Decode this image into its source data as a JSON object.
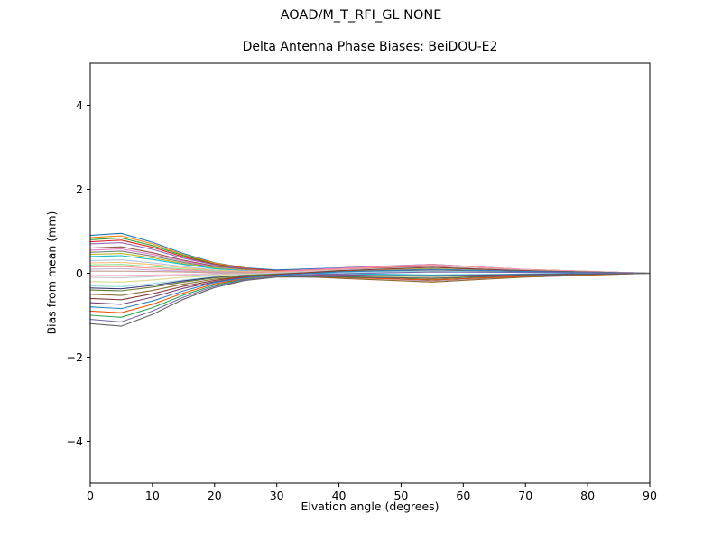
{
  "figure": {
    "background": "#ffffff",
    "spine_color": "#000000"
  },
  "chart_data": {
    "type": "line",
    "title": "AOAD/M_T_RFI_GL NONE",
    "subtitle": "Delta Antenna Phase Biases: BeiDOU-E2",
    "xlabel": "Elvation angle (degrees)",
    "ylabel": "Bias from mean (mm)",
    "xlim": [
      0,
      90
    ],
    "ylim": [
      -5,
      5
    ],
    "xticks": [
      0,
      10,
      20,
      30,
      40,
      50,
      60,
      70,
      80,
      90
    ],
    "yticks": [
      -4,
      -2,
      0,
      2,
      4
    ],
    "grid": false,
    "legend": "none",
    "x": [
      0,
      5,
      10,
      15,
      20,
      25,
      30,
      40,
      55,
      70,
      90
    ],
    "series": [
      {
        "name": "trace-01",
        "color": "#1f77b4",
        "values": [
          0.9,
          0.95,
          0.74,
          0.47,
          0.25,
          0.13,
          0.08,
          0.13,
          0.21,
          0.09,
          0
        ]
      },
      {
        "name": "trace-02",
        "color": "#ff7f0e",
        "values": [
          0.85,
          0.89,
          0.7,
          0.44,
          0.24,
          0.12,
          0.05,
          -0.05,
          -0.14,
          -0.06,
          0
        ]
      },
      {
        "name": "trace-03",
        "color": "#2ca02c",
        "values": [
          0.8,
          0.84,
          0.66,
          0.42,
          0.22,
          0.11,
          0.06,
          0.07,
          0.11,
          0.05,
          0
        ]
      },
      {
        "name": "trace-04",
        "color": "#d62728",
        "values": [
          0.75,
          0.79,
          0.62,
          0.39,
          0.21,
          0.11,
          0.06,
          0.1,
          0.16,
          0.07,
          0
        ]
      },
      {
        "name": "trace-05",
        "color": "#9467bd",
        "values": [
          0.7,
          0.73,
          0.57,
          0.36,
          0.2,
          0.1,
          0.04,
          -0.03,
          -0.09,
          -0.04,
          0
        ]
      },
      {
        "name": "trace-06",
        "color": "#8c564b",
        "values": [
          0.6,
          0.63,
          0.49,
          0.31,
          0.17,
          0.09,
          0.05,
          0.04,
          0.06,
          0.03,
          0
        ]
      },
      {
        "name": "trace-07",
        "color": "#e377c2",
        "values": [
          0.55,
          0.58,
          0.45,
          0.29,
          0.15,
          0.08,
          0.05,
          0.12,
          0.21,
          0.09,
          0
        ]
      },
      {
        "name": "trace-08",
        "color": "#7f7f7f",
        "values": [
          0.5,
          0.53,
          0.41,
          0.26,
          0.14,
          0.07,
          0.02,
          -0.09,
          -0.19,
          -0.09,
          0
        ]
      },
      {
        "name": "trace-09",
        "color": "#bcbd22",
        "values": [
          0.45,
          0.47,
          0.37,
          0.23,
          0.13,
          0.07,
          0.04,
          0.06,
          0.11,
          0.05,
          0
        ]
      },
      {
        "name": "trace-10",
        "color": "#17becf",
        "values": [
          0.4,
          0.42,
          0.33,
          0.21,
          0.11,
          0.06,
          0.02,
          -0.01,
          -0.04,
          -0.02,
          0
        ]
      },
      {
        "name": "trace-11",
        "color": "#aec7e8",
        "values": [
          0.3,
          0.32,
          0.25,
          0.16,
          0.08,
          0.05,
          0.03,
          0.08,
          0.15,
          0.07,
          0
        ]
      },
      {
        "name": "trace-12",
        "color": "#ffbb78",
        "values": [
          0.25,
          0.26,
          0.21,
          0.13,
          0.07,
          0.04,
          0.03,
          0.06,
          0.1,
          0.05,
          0
        ]
      },
      {
        "name": "trace-13",
        "color": "#98df8a",
        "values": [
          0.2,
          0.21,
          0.16,
          0.1,
          0.06,
          0.03,
          0,
          -0.07,
          -0.15,
          -0.07,
          0
        ]
      },
      {
        "name": "trace-14",
        "color": "#ff9896",
        "values": [
          0.15,
          0.16,
          0.12,
          0.08,
          0.04,
          0.03,
          0.03,
          0.1,
          0.2,
          0.09,
          0
        ]
      },
      {
        "name": "trace-15",
        "color": "#c5b0d5",
        "values": [
          0.1,
          0.11,
          0.08,
          0.05,
          0.03,
          0.01,
          0,
          -0.05,
          -0.1,
          -0.04,
          0
        ]
      },
      {
        "name": "trace-16",
        "color": "#c49c94",
        "values": [
          0.05,
          0.05,
          0.04,
          0.03,
          0.01,
          0.01,
          0.01,
          0.05,
          0.1,
          0.05,
          0
        ]
      },
      {
        "name": "trace-17",
        "color": "#f7b6d2",
        "values": [
          -0.05,
          -0.05,
          -0.04,
          -0.03,
          -0.01,
          -0.01,
          -0.02,
          -0.1,
          -0.2,
          -0.09,
          0
        ]
      },
      {
        "name": "trace-18",
        "color": "#c7c7c7",
        "values": [
          -0.1,
          -0.11,
          -0.08,
          -0.05,
          -0.03,
          -0.01,
          0.01,
          0.07,
          0.15,
          0.07,
          0
        ]
      },
      {
        "name": "trace-19",
        "color": "#dbdb8d",
        "values": [
          -0.2,
          -0.21,
          -0.16,
          -0.1,
          -0.06,
          -0.03,
          -0.02,
          -0.06,
          -0.1,
          -0.05,
          0
        ]
      },
      {
        "name": "trace-20",
        "color": "#9edae5",
        "values": [
          -0.3,
          -0.32,
          -0.25,
          -0.16,
          -0.08,
          -0.04,
          -0.02,
          0.02,
          0.05,
          0.02,
          0
        ]
      },
      {
        "name": "trace-21",
        "color": "#393b79",
        "values": [
          -0.35,
          -0.37,
          -0.29,
          -0.18,
          -0.1,
          -0.05,
          -0.04,
          -0.09,
          -0.16,
          -0.07,
          0
        ]
      },
      {
        "name": "trace-22",
        "color": "#637939",
        "values": [
          -0.4,
          -0.42,
          -0.33,
          -0.21,
          -0.11,
          -0.05,
          -0.02,
          0.04,
          0.09,
          0.04,
          0
        ]
      },
      {
        "name": "trace-23",
        "color": "#8c6d31",
        "values": [
          -0.5,
          -0.53,
          -0.41,
          -0.26,
          -0.14,
          -0.07,
          -0.05,
          -0.12,
          -0.21,
          -0.09,
          0
        ]
      },
      {
        "name": "trace-24",
        "color": "#843c39",
        "values": [
          -0.6,
          -0.63,
          -0.49,
          -0.31,
          -0.17,
          -0.08,
          -0.03,
          0.06,
          0.14,
          0.06,
          0
        ]
      },
      {
        "name": "trace-25",
        "color": "#7b4173",
        "values": [
          -0.7,
          -0.74,
          -0.57,
          -0.36,
          -0.2,
          -0.1,
          -0.05,
          -0.05,
          -0.06,
          -0.03,
          0
        ]
      },
      {
        "name": "trace-26",
        "color": "#3182bd",
        "values": [
          -0.8,
          -0.84,
          -0.66,
          -0.42,
          -0.22,
          -0.11,
          -0.05,
          0.03,
          0.09,
          0.04,
          0
        ]
      },
      {
        "name": "trace-27",
        "color": "#e6550d",
        "values": [
          -0.9,
          -0.94,
          -0.74,
          -0.47,
          -0.25,
          -0.13,
          -0.08,
          -0.1,
          -0.16,
          -0.07,
          0
        ]
      },
      {
        "name": "trace-28",
        "color": "#31a354",
        "values": [
          -1,
          -1.05,
          -0.82,
          -0.52,
          -0.28,
          -0.14,
          -0.08,
          -0.08,
          -0.12,
          -0.05,
          0
        ]
      },
      {
        "name": "trace-29",
        "color": "#756bb1",
        "values": [
          -1.1,
          -1.16,
          -0.9,
          -0.57,
          -0.31,
          -0.15,
          -0.07,
          -0.01,
          0.03,
          0.02,
          0
        ]
      },
      {
        "name": "trace-30",
        "color": "#636363",
        "values": [
          -1.2,
          -1.26,
          -0.98,
          -0.62,
          -0.34,
          -0.17,
          -0.09,
          -0.09,
          -0.12,
          -0.05,
          0
        ]
      }
    ]
  }
}
